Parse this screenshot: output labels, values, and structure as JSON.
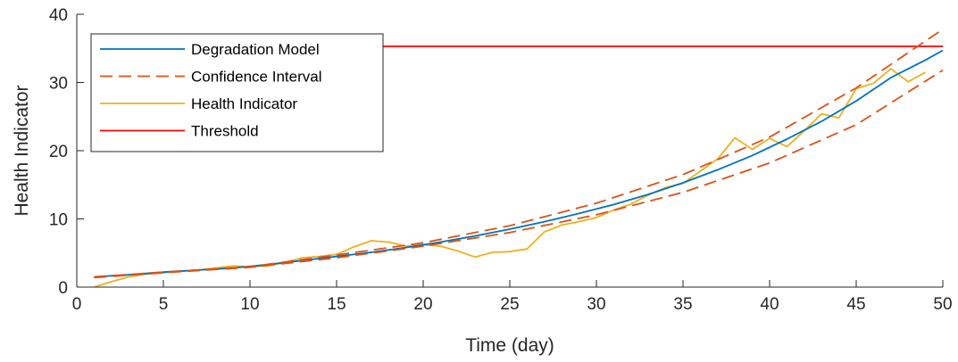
{
  "chart_data": {
    "type": "line",
    "xlabel": "Time (day)",
    "ylabel": "Health Indicator",
    "xlim": [
      0,
      50
    ],
    "ylim": [
      0,
      40
    ],
    "xticks": [
      0,
      5,
      10,
      15,
      20,
      25,
      30,
      35,
      40,
      45,
      50
    ],
    "yticks": [
      0,
      10,
      20,
      30,
      40
    ],
    "grid": false,
    "legend_position": "top-left",
    "series": [
      {
        "name": "Degradation Model",
        "style": "solid",
        "color": "#0072BD",
        "x": [
          1,
          3,
          5,
          7,
          9,
          11,
          13,
          15,
          17,
          19,
          21,
          23,
          25,
          27,
          29,
          31,
          33,
          35,
          37,
          39,
          41,
          43,
          45,
          47,
          49,
          50
        ],
        "y": [
          1.5,
          1.8,
          2.2,
          2.5,
          2.8,
          3.3,
          3.9,
          4.5,
          5.1,
          5.8,
          6.6,
          7.5,
          8.5,
          9.6,
          10.8,
          12.1,
          13.6,
          15.3,
          17.2,
          19.3,
          21.7,
          24.3,
          27.3,
          30.7,
          33.3,
          34.7
        ]
      },
      {
        "name": "Confidence Interval",
        "style": "dashed",
        "color": "#D95319",
        "x": [
          1,
          5,
          10,
          15,
          20,
          25,
          30,
          35,
          40,
          45,
          50
        ],
        "y": [
          1.5,
          2.2,
          3.0,
          4.7,
          6.5,
          9.0,
          12.3,
          16.5,
          22.0,
          29.2,
          37.8
        ]
      },
      {
        "name": "",
        "style": "dashed",
        "color": "#D95319",
        "x": [
          1,
          5,
          10,
          15,
          20,
          25,
          30,
          35,
          40,
          45,
          50
        ],
        "y": [
          1.4,
          2.1,
          2.9,
          4.3,
          6.0,
          8.0,
          10.6,
          13.9,
          18.2,
          23.8,
          31.8
        ]
      },
      {
        "name": "Health Indicator",
        "style": "solid",
        "color": "#EDB120",
        "x": [
          1,
          2,
          3,
          4,
          5,
          6,
          7,
          8,
          9,
          10,
          11,
          12,
          13,
          14,
          15,
          16,
          17,
          18,
          19,
          20,
          21,
          22,
          23,
          24,
          25,
          26,
          27,
          28,
          29,
          30,
          31,
          32,
          33,
          34,
          35,
          36,
          37,
          38,
          39,
          40,
          41,
          42,
          43,
          44,
          45,
          46,
          47,
          48,
          49
        ],
        "y": [
          0.0,
          0.8,
          1.5,
          1.9,
          2.1,
          2.3,
          2.5,
          2.8,
          3.1,
          3.0,
          3.1,
          3.6,
          4.3,
          4.5,
          4.8,
          5.9,
          6.8,
          6.6,
          6.0,
          6.2,
          6.0,
          5.3,
          4.4,
          5.1,
          5.2,
          5.6,
          8.1,
          9.1,
          9.6,
          10.2,
          11.3,
          12.2,
          13.5,
          14.6,
          15.2,
          17.0,
          18.8,
          21.9,
          20.2,
          21.8,
          20.6,
          22.9,
          25.4,
          24.8,
          29.1,
          29.9,
          32.0,
          30.1,
          31.5
        ]
      },
      {
        "name": "Threshold",
        "style": "solid",
        "color": "#FF0000",
        "x": [
          1,
          50
        ],
        "y": [
          35.3,
          35.3
        ]
      }
    ]
  }
}
